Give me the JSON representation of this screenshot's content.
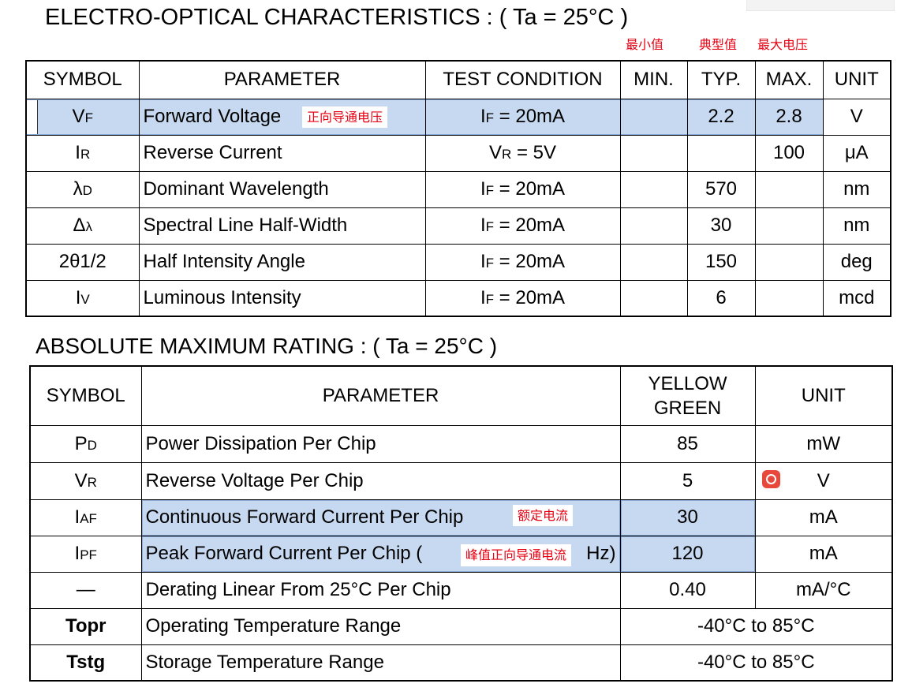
{
  "colors": {
    "highlight": "#c6d9f0",
    "annotation_red": "#e60012",
    "badge_red": "#e8483b"
  },
  "electro_optical": {
    "title": "ELECTRO-OPTICAL CHARACTERISTICS : ( Ta = 25°C )",
    "column_notes": {
      "min": "最小值",
      "typ": "典型值",
      "max": "最大电压"
    },
    "headers": [
      "SYMBOL",
      "PARAMETER",
      "TEST CONDITION",
      "MIN.",
      "TYP.",
      "MAX.",
      "UNIT"
    ],
    "rows": [
      {
        "symbol": {
          "main": "V",
          "sub": "F"
        },
        "parameter": "Forward Voltage",
        "note": "正向导通电压",
        "condition": {
          "main": "I",
          "sub": "F",
          "rest": " = 20mA"
        },
        "min": "",
        "typ": "2.2",
        "max": "2.8",
        "unit": "V",
        "highlighted": true
      },
      {
        "symbol": {
          "main": "I",
          "sub": "R"
        },
        "parameter": "Reverse Current",
        "condition": {
          "main": "V",
          "sub": "R",
          "rest": " = 5V"
        },
        "min": "",
        "typ": "",
        "max": "100",
        "unit": "μA",
        "highlighted": false
      },
      {
        "symbol": {
          "main": "λ",
          "sub": "D"
        },
        "parameter": "Dominant Wavelength",
        "condition": {
          "main": "I",
          "sub": "F",
          "rest": " = 20mA"
        },
        "min": "",
        "typ": "570",
        "max": "",
        "unit": "nm",
        "highlighted": false
      },
      {
        "symbol": {
          "main": "Δ",
          "sub": "λ"
        },
        "parameter": "Spectral Line Half-Width",
        "condition": {
          "main": "I",
          "sub": "F",
          "rest": " = 20mA"
        },
        "min": "",
        "typ": "30",
        "max": "",
        "unit": "nm",
        "highlighted": false
      },
      {
        "symbol": {
          "main": "2θ1/2",
          "sub": ""
        },
        "parameter": "Half Intensity Angle",
        "condition": {
          "main": "I",
          "sub": "F",
          "rest": " = 20mA"
        },
        "min": "",
        "typ": "150",
        "max": "",
        "unit": "deg",
        "highlighted": false
      },
      {
        "symbol": {
          "main": "I",
          "sub": "V"
        },
        "parameter": "Luminous Intensity",
        "condition": {
          "main": "I",
          "sub": "F",
          "rest": " = 20mA"
        },
        "min": "",
        "typ": "6",
        "max": "",
        "unit": "mcd",
        "highlighted": false
      }
    ]
  },
  "absolute_max": {
    "title": "ABSOLUTE MAXIMUM RATING : ( Ta = 25°C )",
    "headers": {
      "symbol": "SYMBOL",
      "parameter": "PARAMETER",
      "value": [
        "YELLOW",
        "GREEN"
      ],
      "unit": "UNIT"
    },
    "rows": [
      {
        "symbol": {
          "main": "P",
          "sub": "D"
        },
        "parameter": "Power Dissipation Per Chip",
        "value": "85",
        "unit": "mW"
      },
      {
        "symbol": {
          "main": "V",
          "sub": "R"
        },
        "parameter": "Reverse Voltage Per Chip",
        "value": "5",
        "unit": "V",
        "unit_icon": "ai-assistant-badge-icon"
      },
      {
        "symbol": {
          "main": "I",
          "sub": "AF"
        },
        "parameter": "Continuous Forward Current Per Chip",
        "note": "额定电流",
        "value": "30",
        "unit": "mA",
        "highlighted": true
      },
      {
        "symbol": {
          "main": "I",
          "sub": "PF"
        },
        "parameter": "Peak Forward Current Per Chip (",
        "parameter_tail": "Hz)",
        "note": "峰值正向导通电流",
        "value": "120",
        "unit": "mA",
        "highlighted": true
      },
      {
        "symbol": {
          "main": "—",
          "sub": ""
        },
        "parameter": "Derating Linear From 25°C Per Chip",
        "value": "0.40",
        "unit": "mA/°C"
      },
      {
        "symbol": {
          "main": "Topr",
          "sub": ""
        },
        "parameter": "Operating Temperature Range",
        "value_span": "-40°C to 85°C"
      },
      {
        "symbol": {
          "main": "Tstg",
          "sub": ""
        },
        "parameter": "Storage Temperature Range",
        "value_span": "-40°C to 85°C"
      }
    ]
  }
}
